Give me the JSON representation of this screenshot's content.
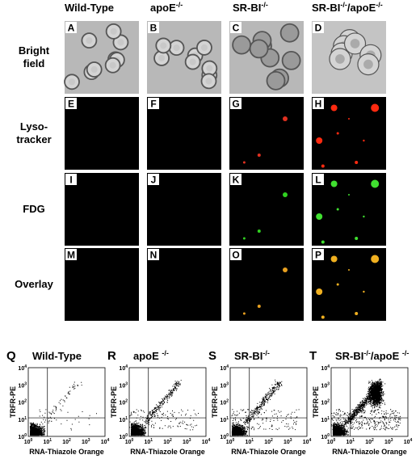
{
  "figure": {
    "column_headers": [
      {
        "segments": [
          {
            "text": "Wild-Type"
          }
        ]
      },
      {
        "segments": [
          {
            "text": "apoE"
          },
          {
            "sup": "-/-"
          }
        ]
      },
      {
        "segments": [
          {
            "text": "SR-BI"
          },
          {
            "sup": "-/-"
          }
        ]
      },
      {
        "segments": [
          {
            "text": "SR-BI"
          },
          {
            "sup": "-/-"
          },
          {
            "text": "/apoE"
          },
          {
            "sup": "-/-"
          }
        ]
      }
    ],
    "row_labels": [
      [
        "Bright",
        "field"
      ],
      [
        "Lyso-",
        "tracker"
      ],
      [
        "FDG"
      ],
      [
        "Overlay"
      ]
    ],
    "panel_letters": [
      "A",
      "B",
      "C",
      "D",
      "E",
      "F",
      "G",
      "H",
      "I",
      "J",
      "K",
      "L",
      "M",
      "N",
      "O",
      "P"
    ],
    "flow": {
      "panel_letters": [
        "Q",
        "R",
        "S",
        "T"
      ],
      "titles": [
        {
          "segments": [
            {
              "text": "Wild-Type"
            }
          ]
        },
        {
          "segments": [
            {
              "text": "apoE "
            },
            {
              "sup": "-/-"
            }
          ]
        },
        {
          "segments": [
            {
              "text": "SR-BI"
            },
            {
              "sup": "-/-"
            }
          ]
        },
        {
          "segments": [
            {
              "text": "SR-BI"
            },
            {
              "sup": "-/-"
            },
            {
              "text": "/apoE "
            },
            {
              "sup": "-/-"
            }
          ]
        }
      ],
      "y_label": "TRFR-PE",
      "x_label": "RNA-Thiazole Orange",
      "ticks": [
        {
          "base": "10",
          "exp": "0"
        },
        {
          "base": "10",
          "exp": "1"
        },
        {
          "base": "10",
          "exp": "2"
        },
        {
          "base": "10",
          "exp": "3"
        },
        {
          "base": "10",
          "exp": "4"
        }
      ]
    }
  }
}
